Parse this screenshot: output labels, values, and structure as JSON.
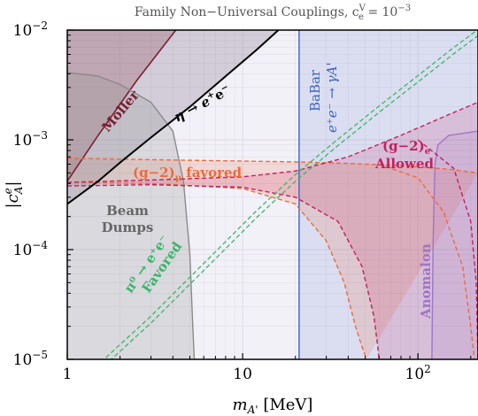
{
  "chart_data": {
    "type": "line",
    "title": "Family Non−Universal Couplings, c",
    "title_sub": "e",
    "title_sup": "V",
    "title_suffix": " = 10",
    "title_exp": "−3",
    "xlabel_main": "m",
    "xlabel_sub": "A'",
    "xlabel_unit": " [MeV]",
    "ylabel_main": "|c",
    "ylabel_sup": "e",
    "ylabel_sub": "A",
    "ylabel_end": "|",
    "x_scale": "log",
    "y_scale": "log",
    "xlim": [
      1,
      220
    ],
    "ylim": [
      1e-05,
      0.01
    ],
    "x_ticks": [
      {
        "value": 1,
        "label": "1"
      },
      {
        "value": 10,
        "label": "10"
      },
      {
        "value": 100,
        "label": "10",
        "exp": "2"
      }
    ],
    "y_ticks": [
      {
        "value": 1e-05,
        "label": "10",
        "exp": "−5"
      },
      {
        "value": 0.0001,
        "label": "10",
        "exp": "−4"
      },
      {
        "value": 0.001,
        "label": "10",
        "exp": "−3"
      },
      {
        "value": 0.01,
        "label": "10",
        "exp": "−2"
      }
    ],
    "grid": true,
    "colors": {
      "background": "#f3f1f8",
      "grid": "#dcd8e6",
      "moller": "#7a1f33",
      "eta": "#000000",
      "beam": "#8a8a8a",
      "babar": "#3b63c4",
      "pi0": "#3bb56b",
      "g2mu": "#ee6a3c",
      "g2e": "#c41f5e",
      "anomalon": "#a074c8"
    },
    "labels": {
      "moller": "Moller",
      "eta": "η → e",
      "eta_sup": "+",
      "eta_mid": "e",
      "eta_sup2": "−",
      "beam_line1": "Beam",
      "beam_line2": "Dumps",
      "babar_line1": "BaBar",
      "babar_line2": "e⁺e⁻ → γA'",
      "pi0_line1": "π⁰ → e⁺e⁻",
      "pi0_line2": "Favored",
      "g2mu": "(g−2)",
      "g2mu_sub": "μ",
      "g2mu_suffix": " favored",
      "g2e": "(g−2)",
      "g2e_sub": "e",
      "g2e_line2": "Allowed",
      "anomalon": "Anomalon"
    },
    "series": [
      {
        "id": "moller",
        "x": [
          1,
          1.5,
          2.5,
          4.2
        ],
        "y": [
          0.00042,
          0.0011,
          0.0035,
          0.0102
        ]
      },
      {
        "id": "eta",
        "x": [
          1,
          1.5,
          2,
          3,
          5,
          8,
          12,
          16
        ],
        "y": [
          0.00026,
          0.00042,
          0.00062,
          0.00105,
          0.002,
          0.0038,
          0.0066,
          0.01
        ]
      },
      {
        "id": "beam",
        "x": [
          1,
          1.5,
          2,
          3,
          4,
          4.6,
          5,
          5.2,
          5.3
        ],
        "y": [
          0.0041,
          0.0038,
          0.0032,
          0.0022,
          0.0012,
          0.00042,
          9e-05,
          2e-05,
          1e-05
        ]
      },
      {
        "id": "babar",
        "x": [
          21,
          21,
          220,
          220
        ],
        "y": [
          1e-05,
          0.01,
          0.01,
          1e-05
        ]
      },
      {
        "id": "pi0",
        "x": [
          1.7,
          3,
          5,
          8,
          12,
          20,
          35,
          60,
          100,
          160,
          220
        ],
        "y": [
          1e-05,
          2.3e-05,
          5.2e-05,
          0.00011,
          0.00021,
          0.00045,
          0.00095,
          0.0019,
          0.0036,
          0.0065,
          0.0095
        ]
      },
      {
        "id": "g2mu_upper",
        "x": [
          1,
          3,
          10,
          20,
          40,
          80,
          150,
          220
        ],
        "y": [
          0.00068,
          0.00066,
          0.00064,
          0.00063,
          0.00061,
          0.00058,
          0.00054,
          0.0005
        ]
      },
      {
        "id": "g2mu_lower",
        "x": [
          1,
          3,
          10,
          20,
          30,
          38,
          44,
          48,
          51
        ],
        "y": [
          0.00041,
          0.0004,
          0.00036,
          0.00026,
          0.00012,
          5e-05,
          2e-05,
          1.3e-05,
          1e-05
        ]
      },
      {
        "id": "g2mu_upper_right",
        "x": [
          60,
          100,
          140,
          180,
          200,
          210
        ],
        "y": [
          0.0006,
          0.00045,
          0.00022,
          7e-05,
          2e-05,
          1e-05
        ]
      },
      {
        "id": "g2e_upper",
        "x": [
          1,
          3,
          10,
          20,
          40,
          80,
          150,
          220
        ],
        "y": [
          0.00041,
          0.00043,
          0.00046,
          0.00052,
          0.0007,
          0.0011,
          0.0017,
          0.0022
        ]
      },
      {
        "id": "g2e_lower",
        "x": [
          1,
          3,
          10,
          20,
          35,
          48,
          56,
          59,
          60
        ],
        "y": [
          0.00038,
          0.00039,
          0.00037,
          0.0003,
          0.00018,
          7e-05,
          2.5e-05,
          1.3e-05,
          1e-05
        ]
      },
      {
        "id": "g2e_right",
        "x": [
          100,
          160,
          200,
          215,
          220
        ],
        "y": [
          0.001,
          0.00055,
          0.00018,
          5e-05,
          1e-05
        ]
      },
      {
        "id": "anomalon",
        "x": [
          120,
          122,
          125,
          130,
          150,
          220
        ],
        "y": [
          1e-05,
          0.00012,
          0.0006,
          0.0009,
          0.0011,
          0.0012
        ]
      }
    ]
  }
}
